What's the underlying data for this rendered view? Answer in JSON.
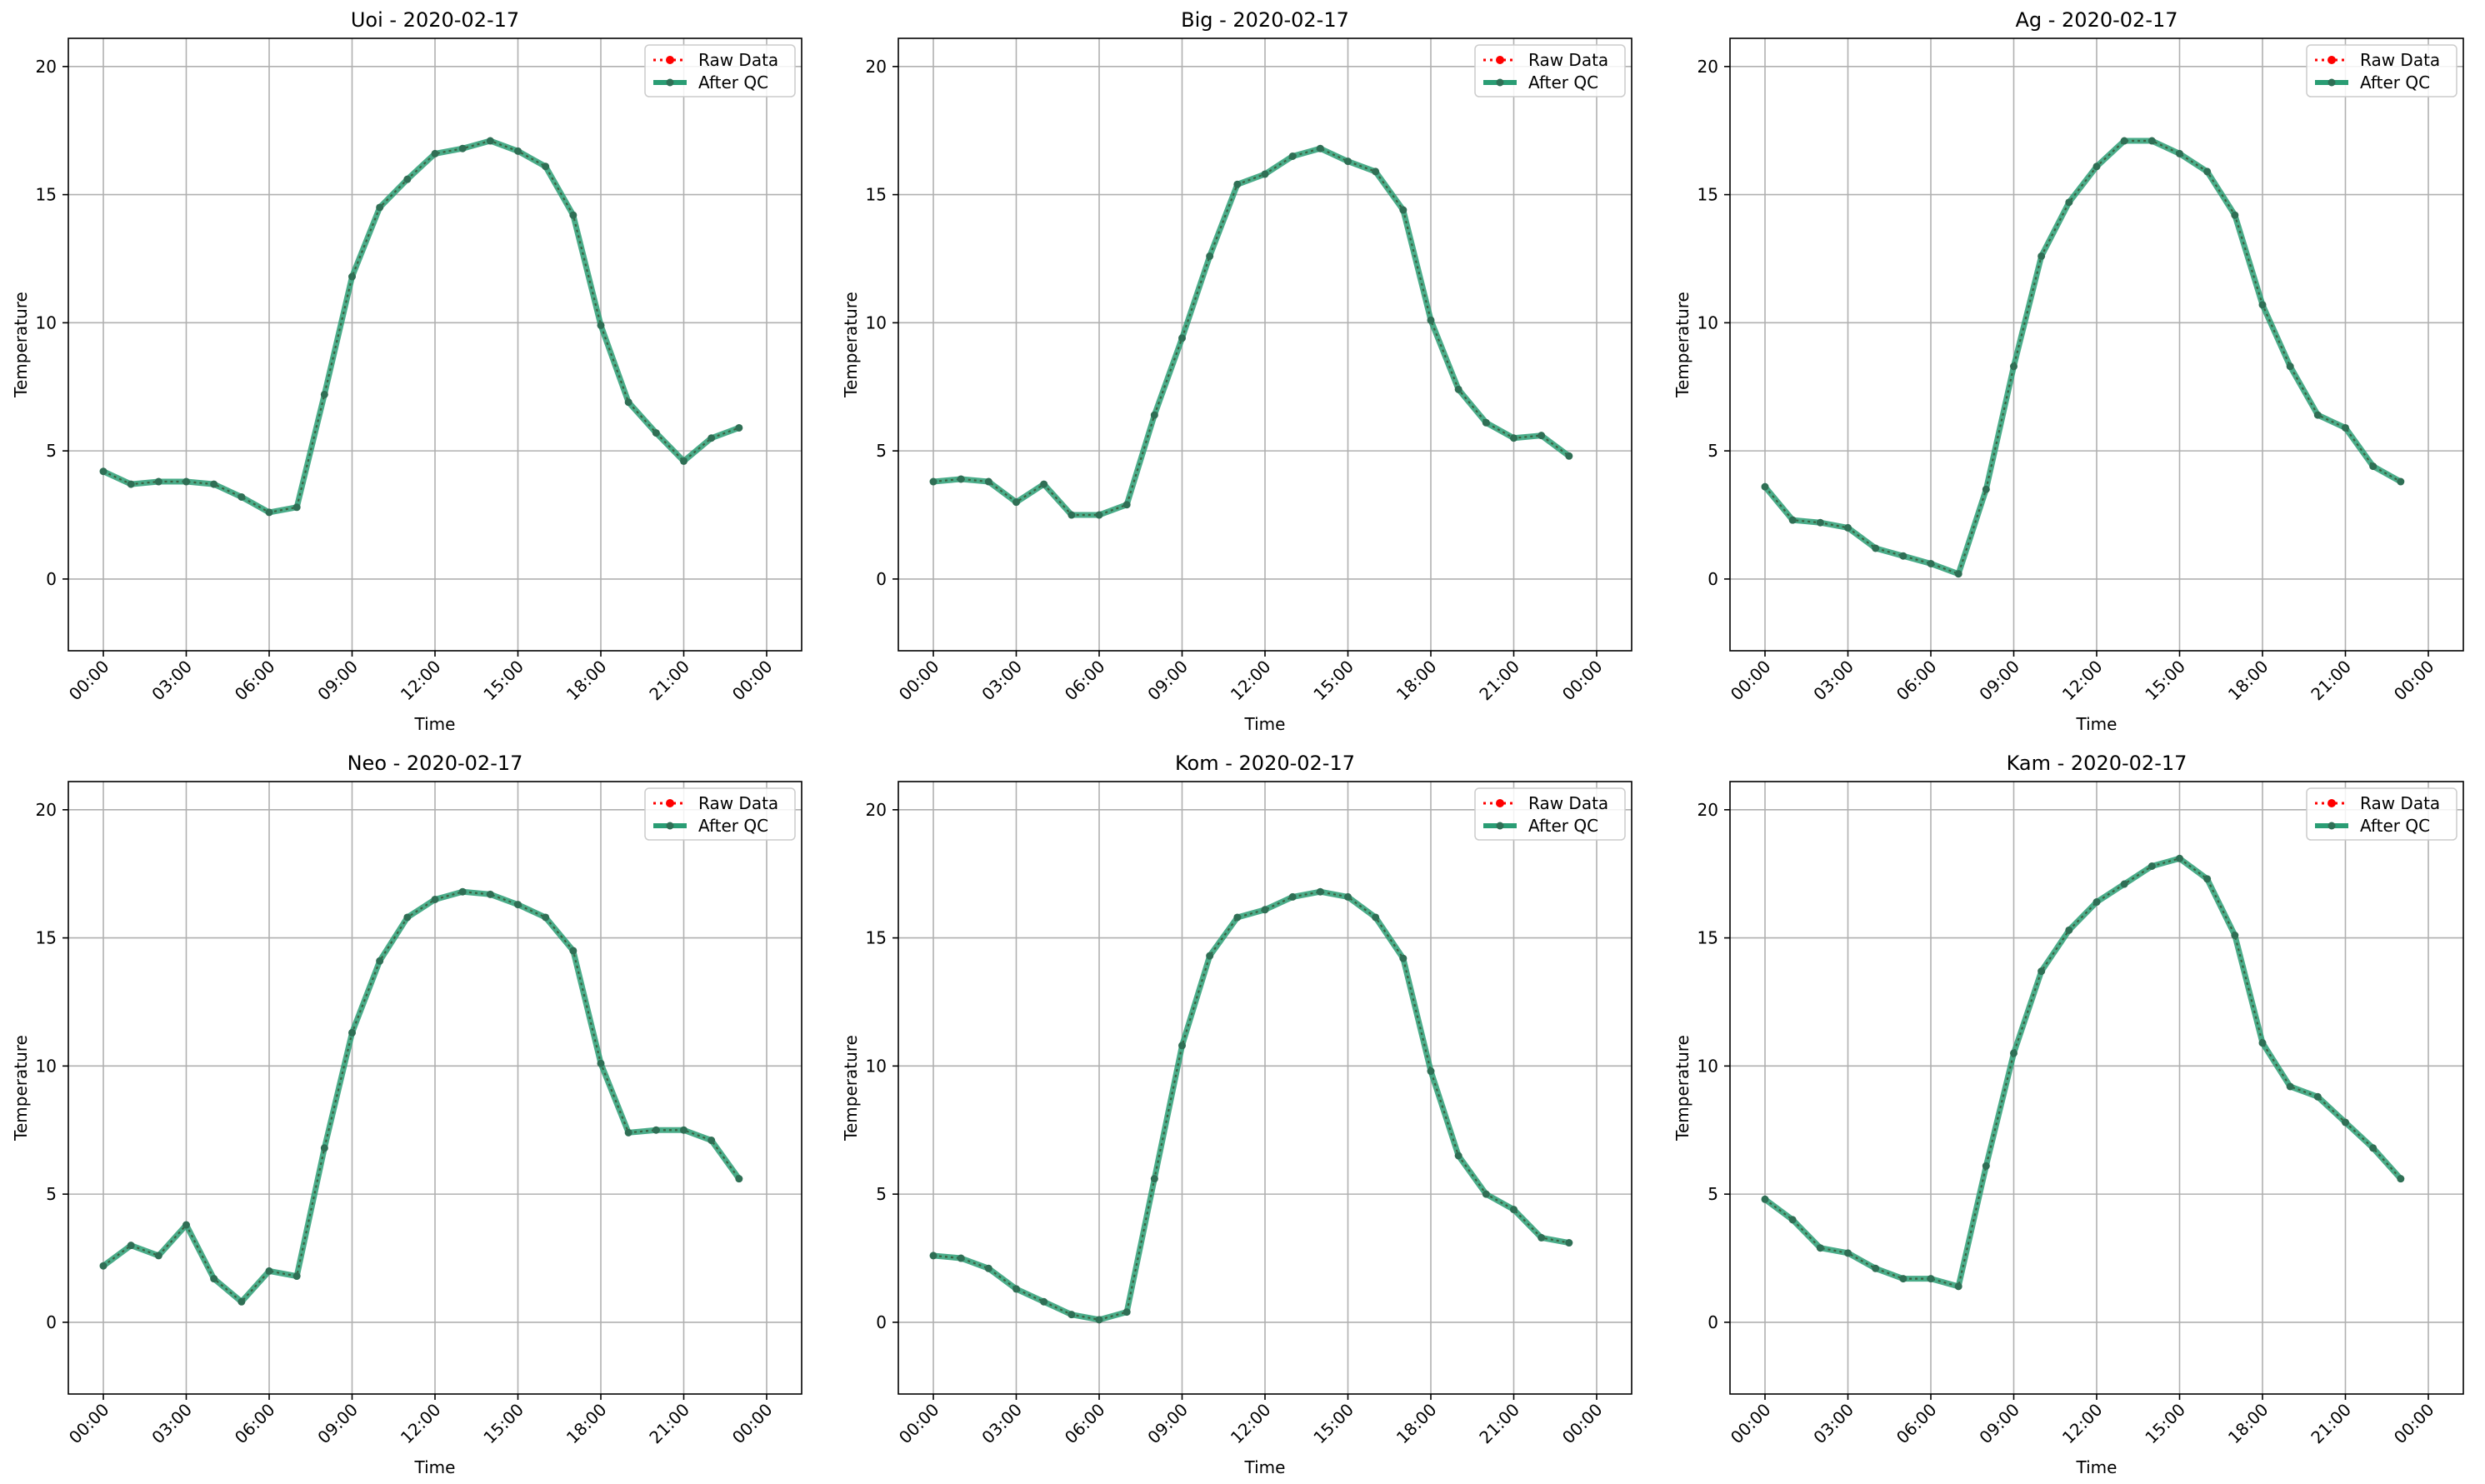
{
  "colors": {
    "raw": "#ff0000",
    "qc": "#2a9d74",
    "grid": "#b0b0b0",
    "axis": "#000000"
  },
  "legend": {
    "raw_label": "Raw Data",
    "qc_label": "After QC",
    "placement": "top-right"
  },
  "chart_data": [
    {
      "type": "line",
      "title": "Uoi - 2020-02-17",
      "xlabel": "Time",
      "ylabel": "Temperature",
      "x_ticks": [
        "00:00",
        "03:00",
        "06:00",
        "09:00",
        "12:00",
        "15:00",
        "18:00",
        "21:00",
        "00:00"
      ],
      "y_ticks": [
        "0",
        "5",
        "10",
        "15",
        "20"
      ],
      "ylim": [
        -2.8,
        21.1
      ],
      "x_hours": [
        0,
        1,
        2,
        3,
        4,
        5,
        6,
        7,
        8,
        9,
        10,
        11,
        12,
        13,
        14,
        15,
        16,
        17,
        18,
        19,
        20,
        21,
        22,
        23
      ],
      "grid": true,
      "series": [
        {
          "name": "Raw Data",
          "values": [
            4.2,
            3.7,
            3.8,
            3.8,
            3.7,
            3.2,
            2.6,
            2.8,
            7.2,
            11.8,
            14.5,
            15.6,
            16.6,
            16.8,
            17.1,
            16.7,
            16.1,
            14.2,
            9.9,
            6.9,
            5.7,
            4.6,
            5.5,
            5.9
          ]
        },
        {
          "name": "After QC",
          "values": [
            4.2,
            3.7,
            3.8,
            3.8,
            3.7,
            3.2,
            2.6,
            2.8,
            7.2,
            11.8,
            14.5,
            15.6,
            16.6,
            16.8,
            17.1,
            16.7,
            16.1,
            14.2,
            9.9,
            6.9,
            5.7,
            4.6,
            5.5,
            5.9
          ]
        }
      ]
    },
    {
      "type": "line",
      "title": "Big - 2020-02-17",
      "xlabel": "Time",
      "ylabel": "Temperature",
      "x_ticks": [
        "00:00",
        "03:00",
        "06:00",
        "09:00",
        "12:00",
        "15:00",
        "18:00",
        "21:00",
        "00:00"
      ],
      "y_ticks": [
        "0",
        "5",
        "10",
        "15",
        "20"
      ],
      "ylim": [
        -2.8,
        21.1
      ],
      "x_hours": [
        0,
        1,
        2,
        3,
        4,
        5,
        6,
        7,
        8,
        9,
        10,
        11,
        12,
        13,
        14,
        15,
        16,
        17,
        18,
        19,
        20,
        21,
        22,
        23
      ],
      "grid": true,
      "series": [
        {
          "name": "Raw Data",
          "values": [
            3.8,
            3.9,
            3.8,
            3.0,
            3.7,
            2.5,
            2.5,
            2.9,
            6.4,
            9.4,
            12.6,
            15.4,
            15.8,
            16.5,
            16.8,
            16.3,
            15.9,
            14.4,
            10.1,
            7.4,
            6.1,
            5.5,
            5.6,
            4.8
          ]
        },
        {
          "name": "After QC",
          "values": [
            3.8,
            3.9,
            3.8,
            3.0,
            3.7,
            2.5,
            2.5,
            2.9,
            6.4,
            9.4,
            12.6,
            15.4,
            15.8,
            16.5,
            16.8,
            16.3,
            15.9,
            14.4,
            10.1,
            7.4,
            6.1,
            5.5,
            5.6,
            4.8
          ]
        }
      ]
    },
    {
      "type": "line",
      "title": "Ag - 2020-02-17",
      "xlabel": "Time",
      "ylabel": "Temperature",
      "x_ticks": [
        "00:00",
        "03:00",
        "06:00",
        "09:00",
        "12:00",
        "15:00",
        "18:00",
        "21:00",
        "00:00"
      ],
      "y_ticks": [
        "0",
        "5",
        "10",
        "15",
        "20"
      ],
      "ylim": [
        -2.8,
        21.1
      ],
      "x_hours": [
        0,
        1,
        2,
        3,
        4,
        5,
        6,
        7,
        8,
        9,
        10,
        11,
        12,
        13,
        14,
        15,
        16,
        17,
        18,
        19,
        20,
        21,
        22,
        23
      ],
      "grid": true,
      "series": [
        {
          "name": "Raw Data",
          "values": [
            3.6,
            2.3,
            2.2,
            2.0,
            1.2,
            0.9,
            0.6,
            0.2,
            3.5,
            8.3,
            12.6,
            14.7,
            16.1,
            17.1,
            17.1,
            16.6,
            15.9,
            14.2,
            10.7,
            8.3,
            6.4,
            5.9,
            4.4,
            3.8
          ]
        },
        {
          "name": "After QC",
          "values": [
            3.6,
            2.3,
            2.2,
            2.0,
            1.2,
            0.9,
            0.6,
            0.2,
            3.5,
            8.3,
            12.6,
            14.7,
            16.1,
            17.1,
            17.1,
            16.6,
            15.9,
            14.2,
            10.7,
            8.3,
            6.4,
            5.9,
            4.4,
            3.8
          ]
        }
      ]
    },
    {
      "type": "line",
      "title": "Neo - 2020-02-17",
      "xlabel": "Time",
      "ylabel": "Temperature",
      "x_ticks": [
        "00:00",
        "03:00",
        "06:00",
        "09:00",
        "12:00",
        "15:00",
        "18:00",
        "21:00",
        "00:00"
      ],
      "y_ticks": [
        "0",
        "5",
        "10",
        "15",
        "20"
      ],
      "ylim": [
        -2.8,
        21.1
      ],
      "x_hours": [
        0,
        1,
        2,
        3,
        4,
        5,
        6,
        7,
        8,
        9,
        10,
        11,
        12,
        13,
        14,
        15,
        16,
        17,
        18,
        19,
        20,
        21,
        22,
        23
      ],
      "grid": true,
      "series": [
        {
          "name": "Raw Data",
          "values": [
            2.2,
            3.0,
            2.6,
            3.8,
            1.7,
            0.8,
            2.0,
            1.8,
            6.8,
            11.3,
            14.1,
            15.8,
            16.5,
            16.8,
            16.7,
            16.3,
            15.8,
            14.5,
            10.1,
            7.4,
            7.5,
            7.5,
            7.1,
            5.6
          ]
        },
        {
          "name": "After QC",
          "values": [
            2.2,
            3.0,
            2.6,
            3.8,
            1.7,
            0.8,
            2.0,
            1.8,
            6.8,
            11.3,
            14.1,
            15.8,
            16.5,
            16.8,
            16.7,
            16.3,
            15.8,
            14.5,
            10.1,
            7.4,
            7.5,
            7.5,
            7.1,
            5.6
          ]
        }
      ]
    },
    {
      "type": "line",
      "title": "Kom - 2020-02-17",
      "xlabel": "Time",
      "ylabel": "Temperature",
      "x_ticks": [
        "00:00",
        "03:00",
        "06:00",
        "09:00",
        "12:00",
        "15:00",
        "18:00",
        "21:00",
        "00:00"
      ],
      "y_ticks": [
        "0",
        "5",
        "10",
        "15",
        "20"
      ],
      "ylim": [
        -2.8,
        21.1
      ],
      "x_hours": [
        0,
        1,
        2,
        3,
        4,
        5,
        6,
        7,
        8,
        9,
        10,
        11,
        12,
        13,
        14,
        15,
        16,
        17,
        18,
        19,
        20,
        21,
        22,
        23
      ],
      "grid": true,
      "series": [
        {
          "name": "Raw Data",
          "values": [
            2.6,
            2.5,
            2.1,
            1.3,
            0.8,
            0.3,
            0.1,
            0.4,
            5.6,
            10.8,
            14.3,
            15.8,
            16.1,
            16.6,
            16.8,
            16.6,
            15.8,
            14.2,
            9.8,
            6.5,
            5.0,
            4.4,
            3.3,
            3.1
          ]
        },
        {
          "name": "After QC",
          "values": [
            2.6,
            2.5,
            2.1,
            1.3,
            0.8,
            0.3,
            0.1,
            0.4,
            5.6,
            10.8,
            14.3,
            15.8,
            16.1,
            16.6,
            16.8,
            16.6,
            15.8,
            14.2,
            9.8,
            6.5,
            5.0,
            4.4,
            3.3,
            3.1
          ]
        }
      ]
    },
    {
      "type": "line",
      "title": "Kam - 2020-02-17",
      "xlabel": "Time",
      "ylabel": "Temperature",
      "x_ticks": [
        "00:00",
        "03:00",
        "06:00",
        "09:00",
        "12:00",
        "15:00",
        "18:00",
        "21:00",
        "00:00"
      ],
      "y_ticks": [
        "0",
        "5",
        "10",
        "15",
        "20"
      ],
      "ylim": [
        -2.8,
        21.1
      ],
      "x_hours": [
        0,
        1,
        2,
        3,
        4,
        5,
        6,
        7,
        8,
        9,
        10,
        11,
        12,
        13,
        14,
        15,
        16,
        17,
        18,
        19,
        20,
        21,
        22,
        23
      ],
      "grid": true,
      "series": [
        {
          "name": "Raw Data",
          "values": [
            4.8,
            4.0,
            2.9,
            2.7,
            2.1,
            1.7,
            1.7,
            1.4,
            6.1,
            10.5,
            13.7,
            15.3,
            16.4,
            17.1,
            17.8,
            18.1,
            17.3,
            15.1,
            10.9,
            9.2,
            8.8,
            7.8,
            6.8,
            5.6
          ]
        },
        {
          "name": "After QC",
          "values": [
            4.8,
            4.0,
            2.9,
            2.7,
            2.1,
            1.7,
            1.7,
            1.4,
            6.1,
            10.5,
            13.7,
            15.3,
            16.4,
            17.1,
            17.8,
            18.1,
            17.3,
            15.1,
            10.9,
            9.2,
            8.8,
            7.8,
            6.8,
            5.6
          ]
        }
      ]
    }
  ]
}
